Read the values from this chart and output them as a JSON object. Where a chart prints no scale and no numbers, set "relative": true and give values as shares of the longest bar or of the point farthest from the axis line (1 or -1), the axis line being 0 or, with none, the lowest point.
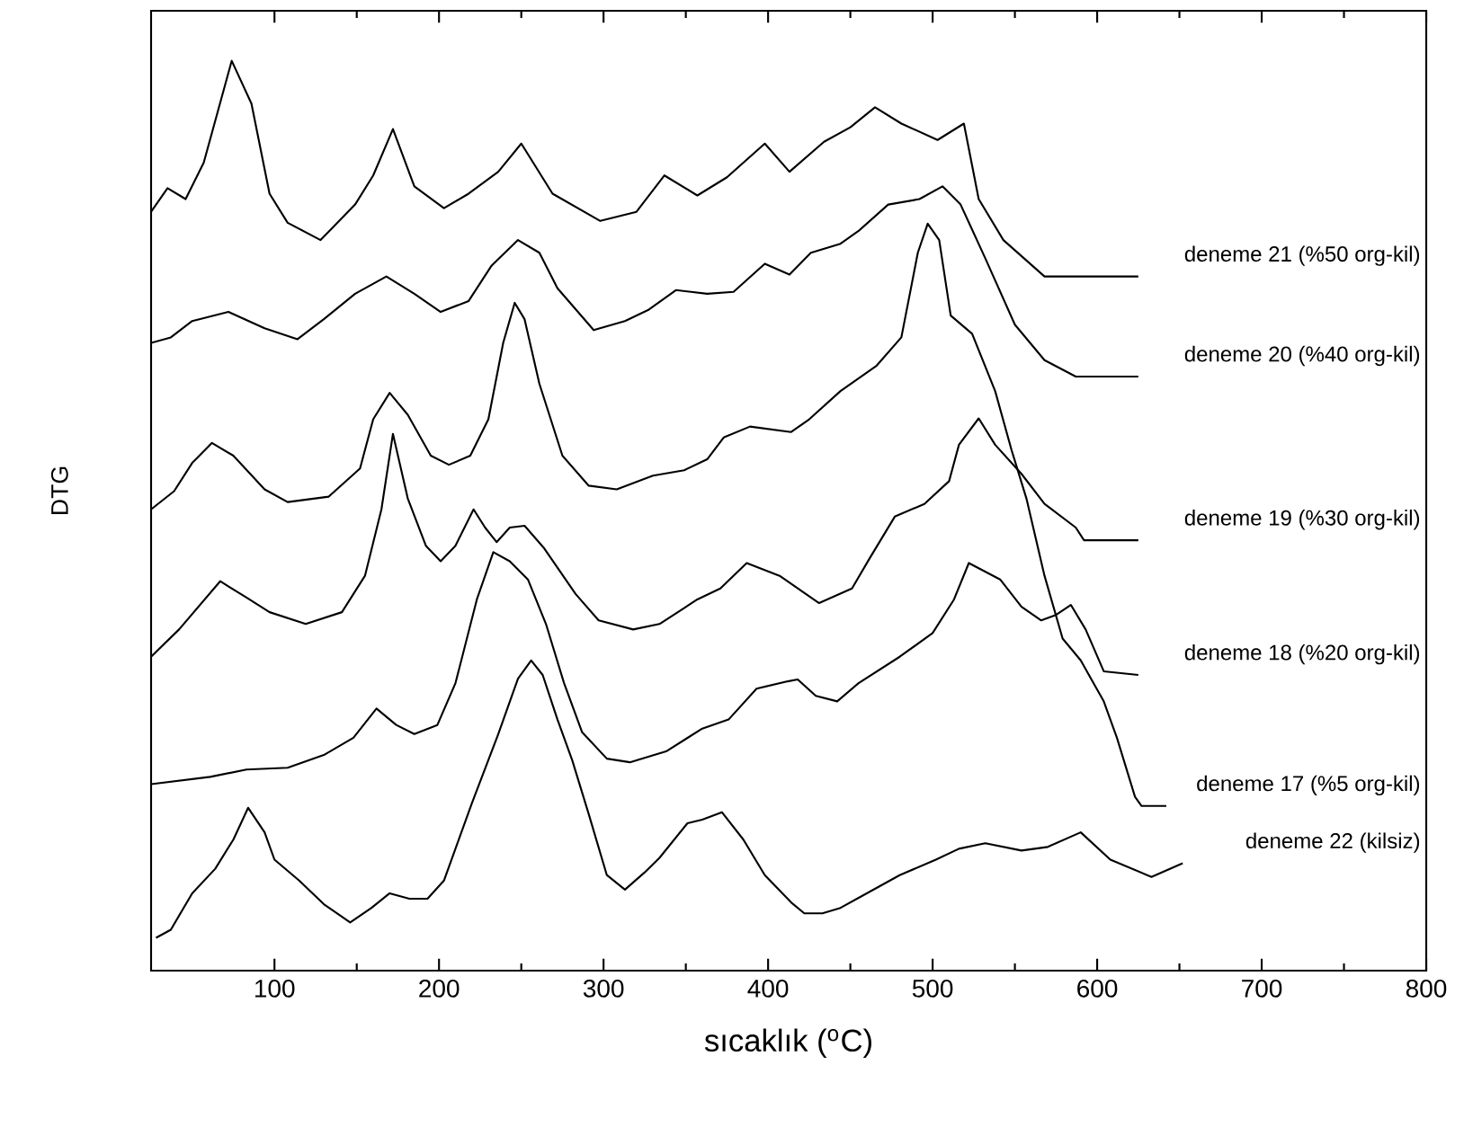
{
  "chart_data": {
    "type": "line",
    "relative": true,
    "xlabel": "sıcaklık ($^{o}$C)",
    "ylabel": "DTG",
    "xlim": [
      25,
      800
    ],
    "xticks": [
      100,
      200,
      300,
      400,
      500,
      600,
      700,
      800
    ],
    "series": [
      {
        "name": "deneme 21 (%50 org-kil)",
        "color": "#000000",
        "x": [
          25,
          35,
          46,
          57,
          74,
          86,
          97,
          108,
          128,
          149,
          160,
          172,
          185,
          203,
          218,
          236,
          250,
          269,
          298,
          320,
          337,
          357,
          375,
          398,
          413,
          434,
          450,
          465,
          481,
          503,
          519,
          528,
          543,
          568,
          625
        ],
        "values": [
          0.834,
          0.86,
          0.848,
          0.888,
          1.0,
          0.953,
          0.854,
          0.822,
          0.803,
          0.842,
          0.874,
          0.925,
          0.862,
          0.838,
          0.854,
          0.878,
          0.909,
          0.854,
          0.824,
          0.834,
          0.874,
          0.852,
          0.872,
          0.909,
          0.878,
          0.911,
          0.927,
          0.949,
          0.931,
          0.913,
          0.931,
          0.848,
          0.803,
          0.763,
          0.763
        ]
      },
      {
        "name": "deneme 20 (%40 org-kil)",
        "color": "#000000",
        "x": [
          25,
          37,
          50,
          72,
          94,
          114,
          130,
          149,
          168,
          185,
          201,
          218,
          232,
          248,
          261,
          272,
          294,
          313,
          327,
          344,
          363,
          379,
          398,
          413,
          426,
          444,
          455,
          473,
          492,
          506,
          517,
          532,
          550,
          568,
          587,
          625
        ],
        "values": [
          0.69,
          0.696,
          0.714,
          0.724,
          0.706,
          0.694,
          0.716,
          0.744,
          0.763,
          0.744,
          0.724,
          0.736,
          0.775,
          0.803,
          0.789,
          0.75,
          0.704,
          0.714,
          0.726,
          0.748,
          0.744,
          0.746,
          0.777,
          0.765,
          0.789,
          0.799,
          0.813,
          0.842,
          0.848,
          0.862,
          0.842,
          0.783,
          0.71,
          0.671,
          0.653,
          0.653
        ]
      },
      {
        "name": "deneme 17 (%5 org-kil)",
        "color": "#000000",
        "x": [
          25,
          39,
          50,
          62,
          75,
          94,
          108,
          133,
          152,
          160,
          170,
          181,
          195,
          206,
          219,
          230,
          239,
          246,
          252,
          261,
          275,
          291,
          308,
          330,
          349,
          363,
          373,
          389,
          414,
          425,
          444,
          466,
          481,
          491,
          497,
          504,
          511,
          524,
          538,
          548,
          557,
          568,
          579,
          590,
          604,
          612,
          623,
          627,
          642
        ],
        "values": [
          0.507,
          0.527,
          0.558,
          0.58,
          0.566,
          0.529,
          0.515,
          0.521,
          0.552,
          0.606,
          0.635,
          0.611,
          0.566,
          0.556,
          0.566,
          0.606,
          0.69,
          0.734,
          0.716,
          0.645,
          0.566,
          0.533,
          0.529,
          0.544,
          0.55,
          0.562,
          0.586,
          0.598,
          0.592,
          0.606,
          0.637,
          0.665,
          0.696,
          0.789,
          0.821,
          0.803,
          0.72,
          0.7,
          0.637,
          0.572,
          0.519,
          0.434,
          0.365,
          0.341,
          0.296,
          0.256,
          0.191,
          0.181,
          0.181
        ]
      },
      {
        "name": "deneme 19 (%30 org-kil)",
        "color": "#000000",
        "x": [
          25,
          42,
          67,
          83,
          97,
          119,
          141,
          155,
          165,
          172,
          181,
          192,
          201,
          210,
          221,
          228,
          235,
          243,
          252,
          264,
          283,
          297,
          318,
          334,
          357,
          371,
          387,
          407,
          431,
          451,
          462,
          477,
          495,
          510,
          516,
          528,
          538,
          554,
          568,
          587,
          592,
          625
        ],
        "values": [
          0.345,
          0.375,
          0.428,
          0.41,
          0.394,
          0.381,
          0.394,
          0.434,
          0.507,
          0.59,
          0.519,
          0.467,
          0.45,
          0.467,
          0.507,
          0.487,
          0.471,
          0.487,
          0.489,
          0.464,
          0.414,
          0.385,
          0.375,
          0.381,
          0.408,
          0.42,
          0.448,
          0.434,
          0.404,
          0.42,
          0.454,
          0.499,
          0.513,
          0.538,
          0.578,
          0.607,
          0.578,
          0.546,
          0.513,
          0.487,
          0.473,
          0.473
        ]
      },
      {
        "name": "deneme 18 (%20 org-kil)",
        "color": "#000000",
        "x": [
          25,
          61,
          83,
          108,
          130,
          148,
          162,
          174,
          185,
          199,
          210,
          223,
          233,
          243,
          254,
          265,
          276,
          287,
          302,
          316,
          338,
          360,
          376,
          393,
          412,
          418,
          429,
          442,
          455,
          480,
          500,
          513,
          522,
          541,
          554,
          566,
          575,
          584,
          593,
          604,
          625
        ],
        "values": [
          0.205,
          0.213,
          0.221,
          0.223,
          0.237,
          0.256,
          0.288,
          0.27,
          0.26,
          0.27,
          0.316,
          0.408,
          0.46,
          0.45,
          0.43,
          0.381,
          0.316,
          0.262,
          0.233,
          0.229,
          0.241,
          0.266,
          0.276,
          0.31,
          0.318,
          0.32,
          0.302,
          0.296,
          0.316,
          0.345,
          0.371,
          0.408,
          0.448,
          0.43,
          0.4,
          0.385,
          0.391,
          0.402,
          0.375,
          0.329,
          0.325
        ]
      },
      {
        "name": "deneme 22 (kilsiz)",
        "color": "#000000",
        "x": [
          28,
          37,
          50,
          64,
          75,
          84,
          94,
          100,
          115,
          130,
          146,
          159,
          170,
          182,
          193,
          203,
          220,
          236,
          248,
          256,
          263,
          272,
          281,
          291,
          302,
          313,
          325,
          334,
          351,
          360,
          372,
          385,
          398,
          414,
          422,
          433,
          444,
          458,
          480,
          502,
          516,
          532,
          554,
          570,
          590,
          608,
          633,
          652
        ],
        "values": [
          0.036,
          0.045,
          0.085,
          0.112,
          0.144,
          0.179,
          0.152,
          0.122,
          0.099,
          0.073,
          0.053,
          0.069,
          0.085,
          0.079,
          0.079,
          0.099,
          0.184,
          0.26,
          0.321,
          0.341,
          0.325,
          0.276,
          0.231,
          0.172,
          0.105,
          0.089,
          0.108,
          0.124,
          0.162,
          0.166,
          0.174,
          0.144,
          0.105,
          0.075,
          0.063,
          0.063,
          0.069,
          0.083,
          0.105,
          0.122,
          0.134,
          0.14,
          0.132,
          0.136,
          0.152,
          0.122,
          0.103,
          0.118
        ]
      }
    ]
  }
}
